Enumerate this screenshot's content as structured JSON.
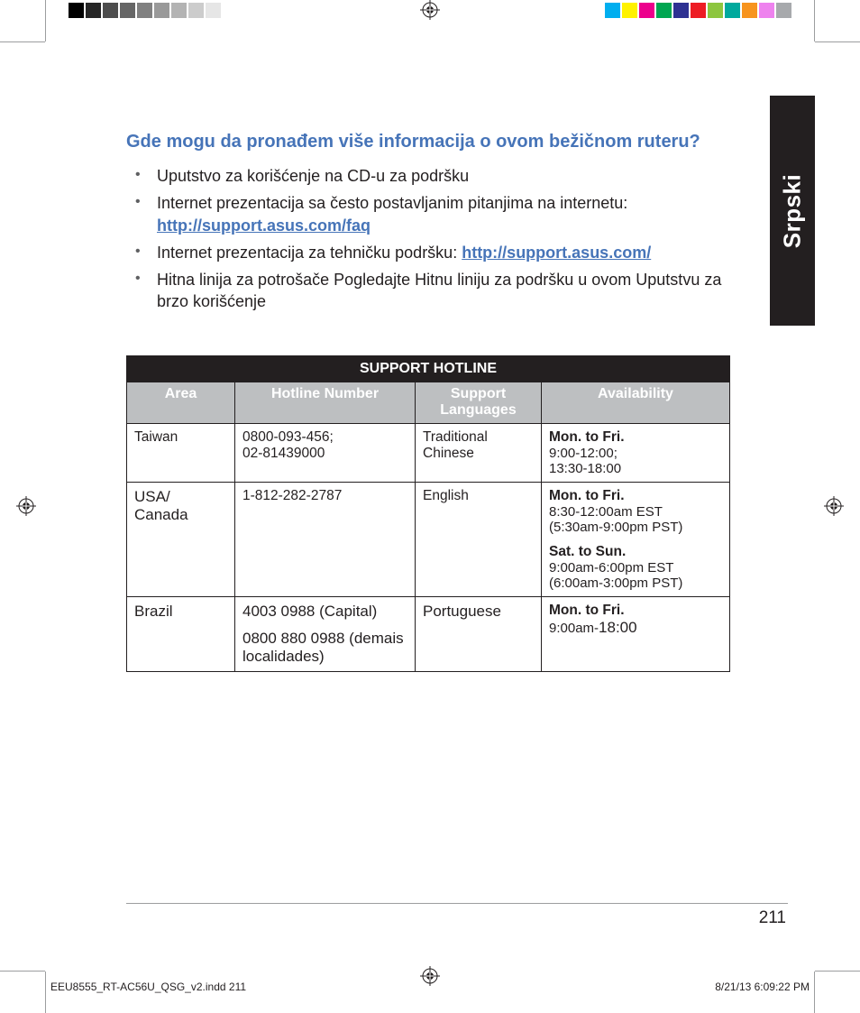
{
  "printer_marks": {
    "grayscale_bar_colors": [
      "#000000",
      "#262626",
      "#4d4d4d",
      "#666666",
      "#808080",
      "#999999",
      "#b3b3b3",
      "#cccccc",
      "#e6e6e6",
      "#ffffff"
    ],
    "color_bar_colors": [
      "#00aeef",
      "#fff200",
      "#ec008c",
      "#00a651",
      "#2e3192",
      "#ed1c24",
      "#8dc63f",
      "#00a99d",
      "#f7941e",
      "#ee82ee",
      "#a7a9ac"
    ]
  },
  "side_tab": {
    "label": "Srpski",
    "bg": "#231f20",
    "text_color": "#ffffff"
  },
  "heading": {
    "text": "Gde mogu da pronađem više informacija o ovom bežičnom ruteru?",
    "color": "#4674b8"
  },
  "bullets": [
    {
      "text": "Uputstvo za korišćenje na CD-u za podršku"
    },
    {
      "text_before": "Internet prezentacija sa često postavljanim pitanjima na internetu: ",
      "link": "http://support.asus.com/faq",
      "link_color": "#4674b8"
    },
    {
      "text_before": "Internet prezentacija za tehničku podršku: ",
      "link": "http://support.asus.com/",
      "link_color": "#4674b8"
    },
    {
      "text": "Hitna linija za potrošače Pogledajte Hitnu liniju za podršku u ovom Uputstvu za brzo korišćenje"
    }
  ],
  "table": {
    "title": "SUPPORT HOTLINE",
    "title_bg": "#231f20",
    "header_bg": "#bdbfc1",
    "border_color": "#231f20",
    "columns": [
      "Area",
      "Hotline Number",
      "Support Languages",
      "Availability"
    ],
    "rows": [
      {
        "area": "Taiwan",
        "hotline": "0800-093-456; 02-81439000",
        "language": "Traditional Chinese",
        "availability": [
          {
            "bold": "Mon. to Fri.",
            "lines": [
              "9:00-12:00;",
              "13:30-18:00"
            ]
          }
        ],
        "size": "sm"
      },
      {
        "area": "USA/ Canada",
        "hotline": "1-812-282-2787",
        "language": "English",
        "availability": [
          {
            "bold": "Mon. to Fri.",
            "lines": [
              "8:30-12:00am EST",
              "(5:30am-9:00pm PST)"
            ]
          },
          {
            "bold": "Sat. to Sun.",
            "lines": [
              "9:00am-6:00pm EST",
              "(6:00am-3:00pm PST)"
            ]
          }
        ],
        "size": "mix"
      },
      {
        "area": "Brazil",
        "hotline_lines": [
          "4003 0988 (Capital)",
          "0800 880 0988 (demais localidades)"
        ],
        "language": "Portuguese",
        "availability": [
          {
            "bold": "Mon. to Fri.",
            "lines_html": "9:00am-<span class=\"lg\">18:00</span>"
          }
        ],
        "size": "lg"
      }
    ]
  },
  "footer": {
    "page_number": "211",
    "slug_left": "EEU8555_RT-AC56U_QSG_v2.indd   211",
    "slug_right": "8/21/13   6:09:22 PM"
  }
}
